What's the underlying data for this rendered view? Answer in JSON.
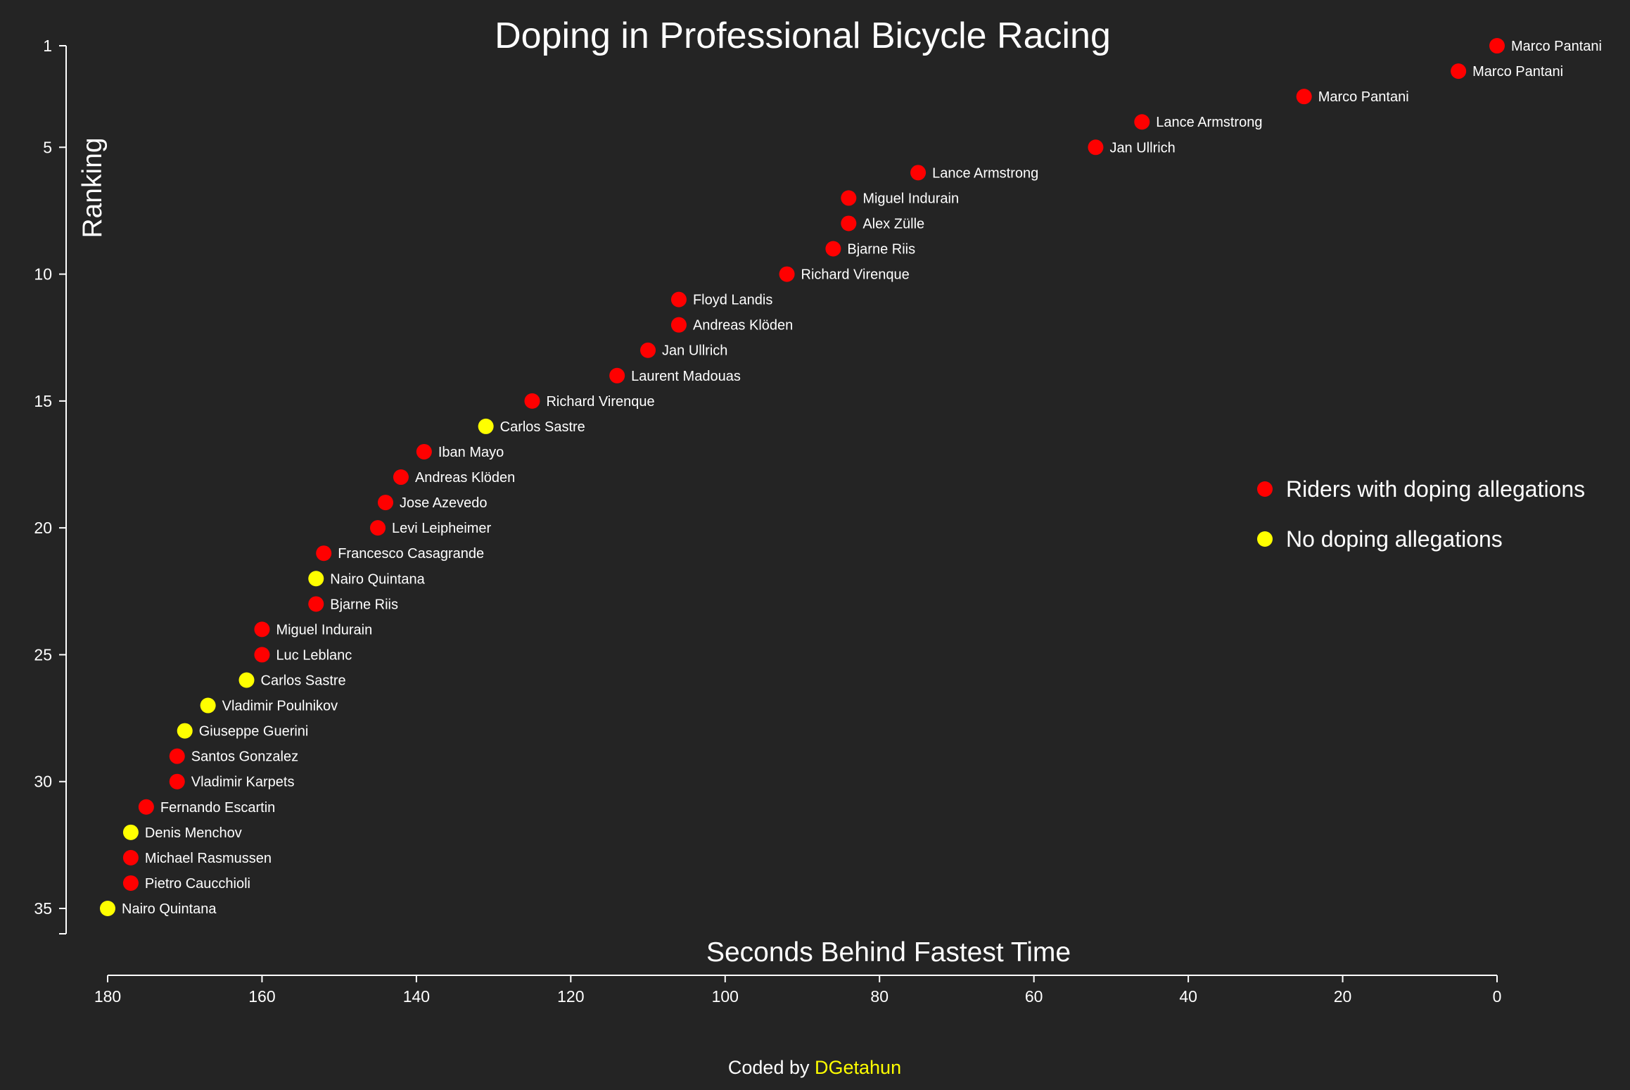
{
  "chart_data": {
    "type": "scatter",
    "title": "Doping in Professional Bicycle Racing",
    "xlabel": "Seconds Behind Fastest Time",
    "ylabel": "Ranking",
    "xlim": [
      180,
      0
    ],
    "ylim": [
      0,
      35
    ],
    "xticks": [
      180,
      160,
      140,
      120,
      100,
      80,
      60,
      40,
      20,
      0
    ],
    "yticks": [
      1,
      5,
      10,
      15,
      20,
      25,
      30,
      35
    ],
    "grid": false,
    "legend_position": "right",
    "series": [
      {
        "name": "Riders with doping allegations",
        "color": "#ff0000"
      },
      {
        "name": "No doping allegations",
        "color": "#ffff00"
      }
    ],
    "points": [
      {
        "x": 0,
        "y": 1,
        "name": "Marco Pantani",
        "doping": true
      },
      {
        "x": 5,
        "y": 2,
        "name": "Marco Pantani",
        "doping": true
      },
      {
        "x": 25,
        "y": 3,
        "name": "Marco Pantani",
        "doping": true
      },
      {
        "x": 46,
        "y": 4,
        "name": "Lance Armstrong",
        "doping": true
      },
      {
        "x": 52,
        "y": 5,
        "name": "Jan Ullrich",
        "doping": true
      },
      {
        "x": 75,
        "y": 6,
        "name": "Lance Armstrong",
        "doping": true
      },
      {
        "x": 84,
        "y": 7,
        "name": "Miguel Indurain",
        "doping": true
      },
      {
        "x": 84,
        "y": 8,
        "name": "Alex Zülle",
        "doping": true
      },
      {
        "x": 86,
        "y": 9,
        "name": "Bjarne Riis",
        "doping": true
      },
      {
        "x": 92,
        "y": 10,
        "name": "Richard Virenque",
        "doping": true
      },
      {
        "x": 106,
        "y": 11,
        "name": "Floyd Landis",
        "doping": true
      },
      {
        "x": 106,
        "y": 12,
        "name": "Andreas Klöden",
        "doping": true
      },
      {
        "x": 110,
        "y": 13,
        "name": "Jan Ullrich",
        "doping": true
      },
      {
        "x": 114,
        "y": 14,
        "name": "Laurent Madouas",
        "doping": true
      },
      {
        "x": 125,
        "y": 15,
        "name": "Richard Virenque",
        "doping": true
      },
      {
        "x": 131,
        "y": 16,
        "name": "Carlos Sastre",
        "doping": false
      },
      {
        "x": 139,
        "y": 17,
        "name": "Iban Mayo",
        "doping": true
      },
      {
        "x": 142,
        "y": 18,
        "name": "Andreas Klöden",
        "doping": true
      },
      {
        "x": 144,
        "y": 19,
        "name": "Jose Azevedo",
        "doping": true
      },
      {
        "x": 145,
        "y": 20,
        "name": "Levi Leipheimer",
        "doping": true
      },
      {
        "x": 152,
        "y": 21,
        "name": "Francesco Casagrande",
        "doping": true
      },
      {
        "x": 153,
        "y": 22,
        "name": "Nairo Quintana",
        "doping": false
      },
      {
        "x": 153,
        "y": 23,
        "name": "Bjarne Riis",
        "doping": true
      },
      {
        "x": 160,
        "y": 24,
        "name": "Miguel Indurain",
        "doping": true
      },
      {
        "x": 160,
        "y": 25,
        "name": "Luc Leblanc",
        "doping": true
      },
      {
        "x": 162,
        "y": 26,
        "name": "Carlos Sastre",
        "doping": false
      },
      {
        "x": 167,
        "y": 27,
        "name": "Vladimir Poulnikov",
        "doping": false
      },
      {
        "x": 170,
        "y": 28,
        "name": "Giuseppe Guerini",
        "doping": false
      },
      {
        "x": 171,
        "y": 29,
        "name": "Santos Gonzalez",
        "doping": true
      },
      {
        "x": 171,
        "y": 30,
        "name": "Vladimir Karpets",
        "doping": true
      },
      {
        "x": 175,
        "y": 31,
        "name": "Fernando Escartin",
        "doping": true
      },
      {
        "x": 177,
        "y": 32,
        "name": "Denis Menchov",
        "doping": false
      },
      {
        "x": 177,
        "y": 33,
        "name": "Michael Rasmussen",
        "doping": true
      },
      {
        "x": 177,
        "y": 34,
        "name": "Pietro Caucchioli",
        "doping": true
      },
      {
        "x": 180,
        "y": 35,
        "name": "Nairo Quintana",
        "doping": false
      }
    ]
  },
  "footer": {
    "prefix": "Coded by ",
    "author": "DGetahun",
    "author_color": "#ffff00"
  }
}
